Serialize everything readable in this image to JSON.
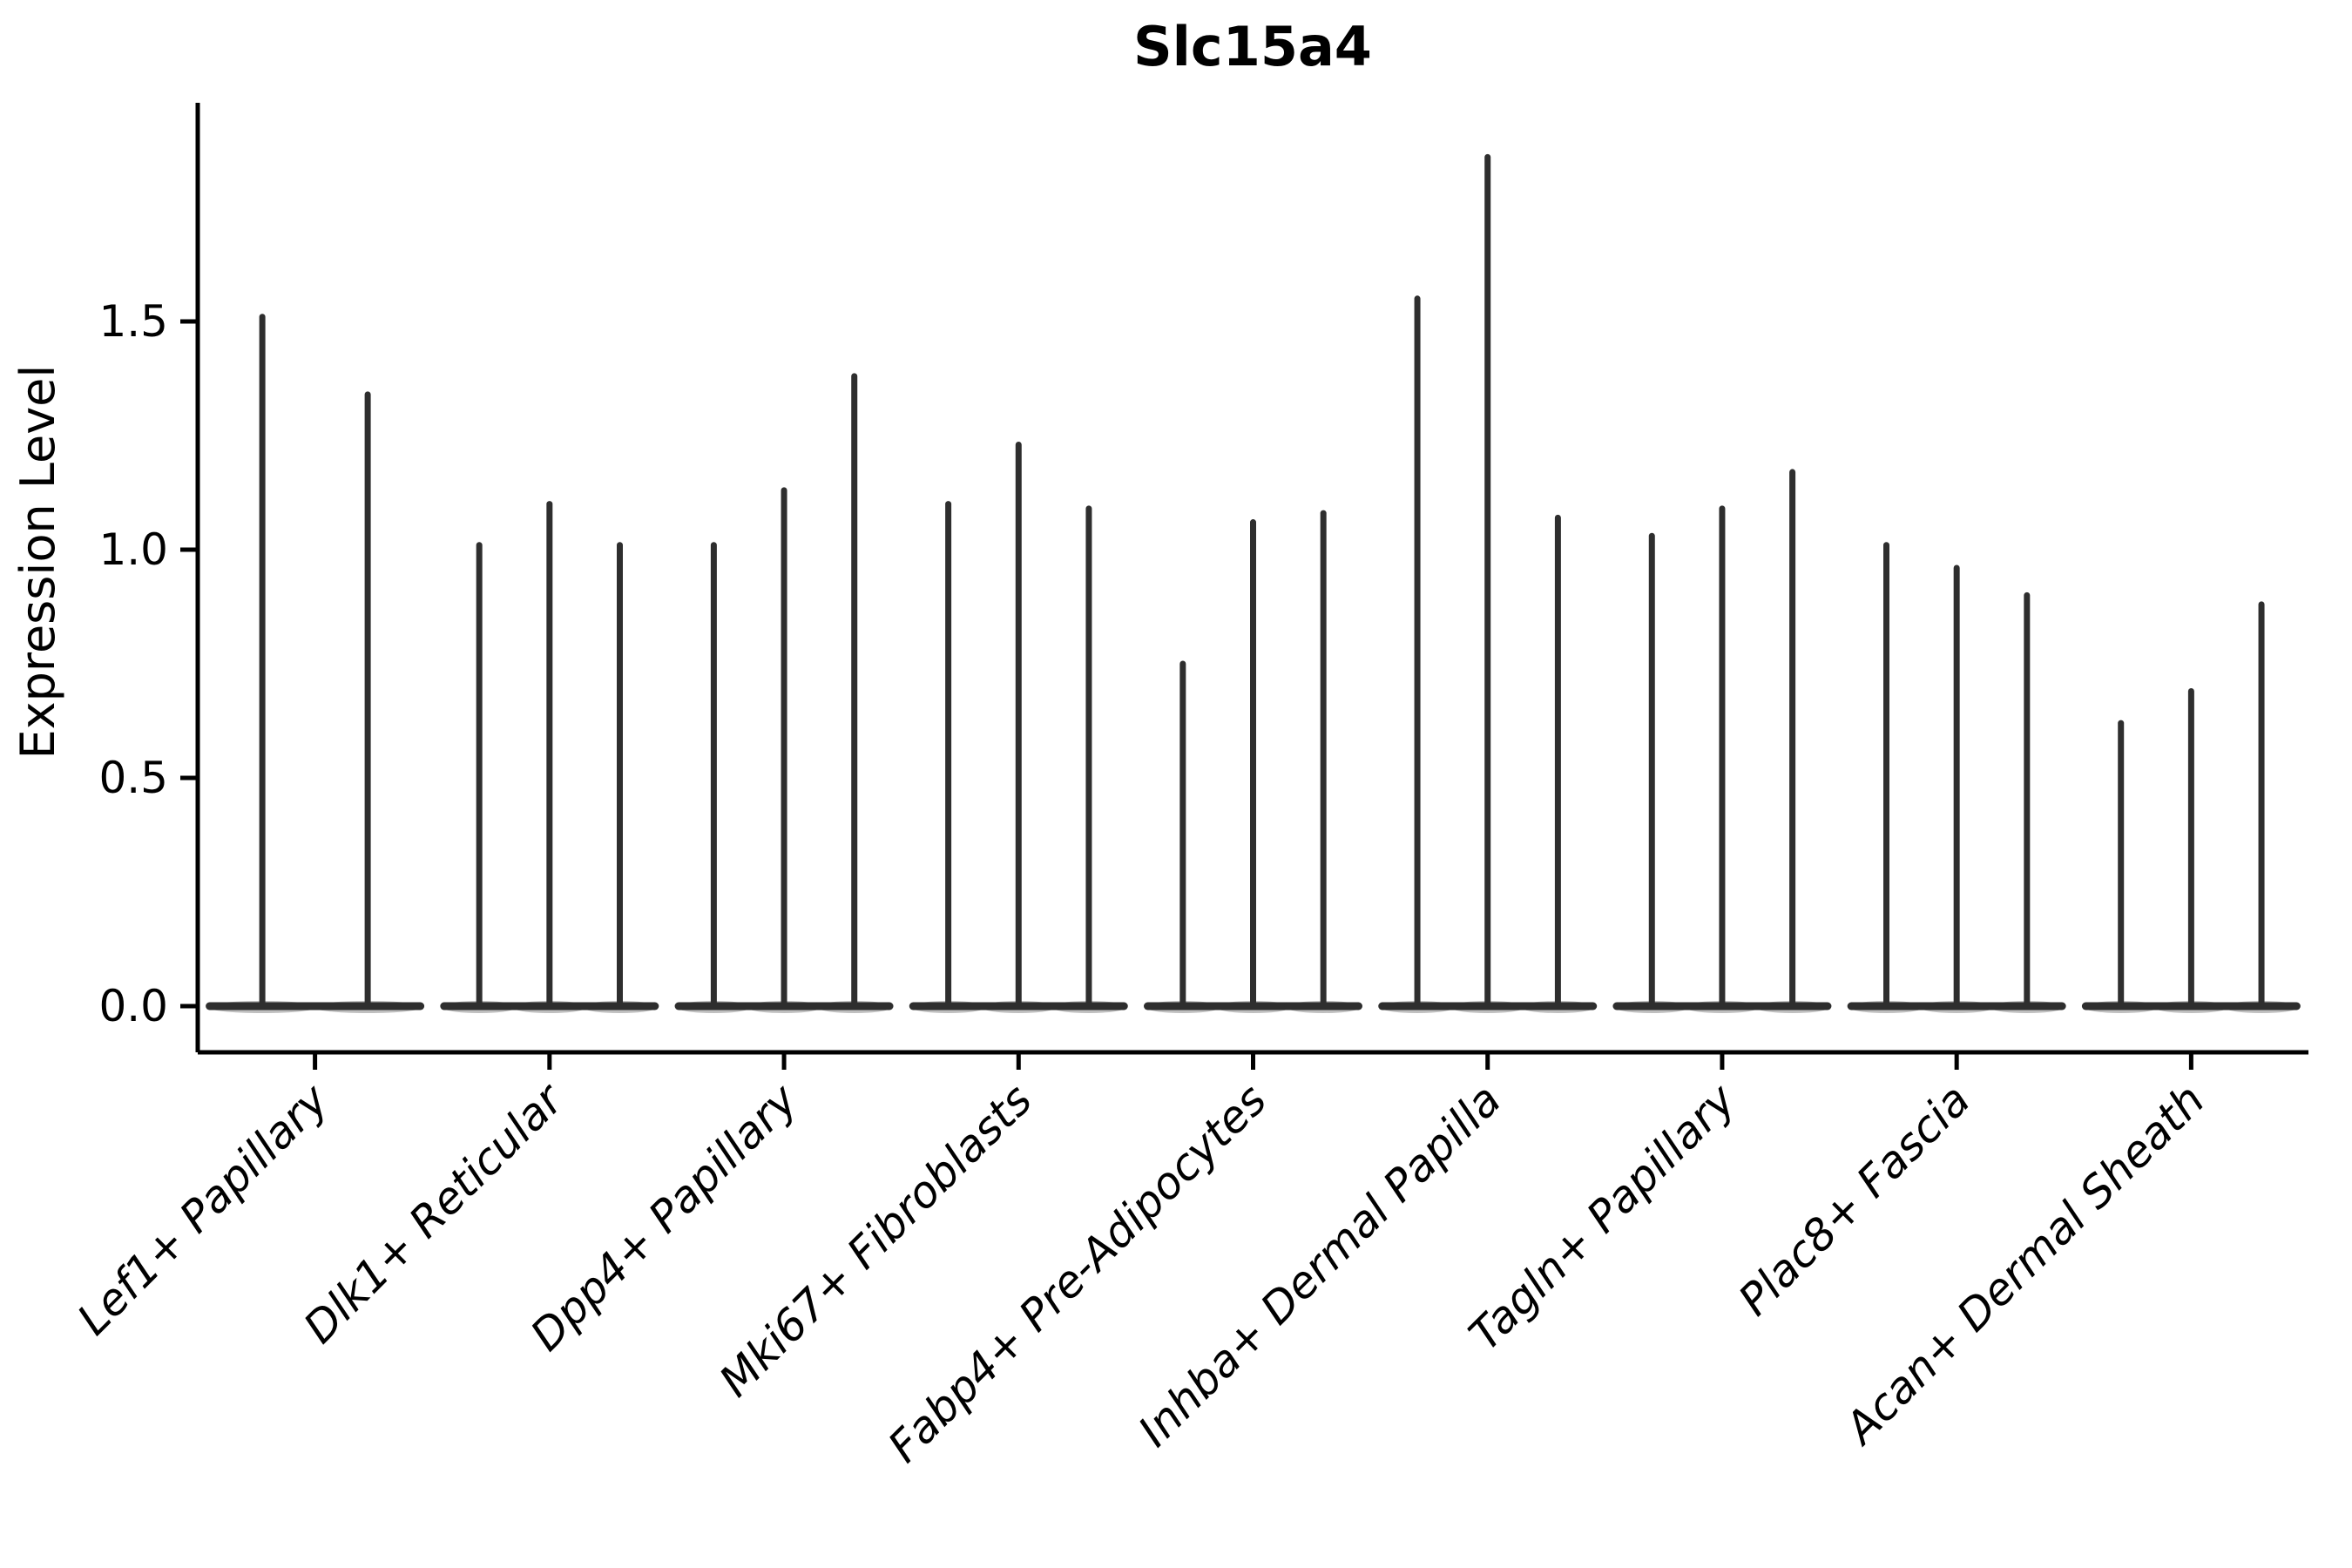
{
  "chart_data": {
    "type": "violin",
    "title": "Slc15a4",
    "ylabel": "Expression Level",
    "xlabel": "",
    "ylim": [
      0,
      1.98
    ],
    "yticks": [
      "0.0",
      "0.5",
      "1.0",
      "1.5"
    ],
    "ytick_values": [
      0.0,
      0.5,
      1.0,
      1.5
    ],
    "grid": false,
    "legend": "none",
    "x_label_rotation_deg": 45,
    "categories": [
      "Lef1+ Papillary",
      "Dlk1+ Reticular",
      "Dpp4+ Papillary",
      "Mki67+ Fibroblasts",
      "Fabp4+ Pre-Adipocytes",
      "Inhba+ Dermal Papilla",
      "Tagln+ Papillary",
      "Plac8+ Fascia",
      "Acan+ Dermal Sheath"
    ],
    "series": [
      {
        "category": "Lef1+ Papillary",
        "violin_peaks": [
          1.51,
          1.34
        ]
      },
      {
        "category": "Dlk1+ Reticular",
        "violin_peaks": [
          1.01,
          1.1,
          1.01
        ]
      },
      {
        "category": "Dpp4+ Papillary",
        "violin_peaks": [
          1.01,
          1.13,
          1.38
        ]
      },
      {
        "category": "Mki67+ Fibroblasts",
        "violin_peaks": [
          1.1,
          1.23,
          1.09
        ]
      },
      {
        "category": "Fabp4+ Pre-Adipocytes",
        "violin_peaks": [
          0.75,
          1.06,
          1.08
        ]
      },
      {
        "category": "Inhba+ Dermal Papilla",
        "violin_peaks": [
          1.55,
          1.86,
          1.07
        ]
      },
      {
        "category": "Tagln+ Papillary",
        "violin_peaks": [
          1.03,
          1.09,
          1.17
        ]
      },
      {
        "category": "Plac8+ Fascia",
        "violin_peaks": [
          1.01,
          0.96,
          0.9
        ]
      },
      {
        "category": "Acan+ Dermal Sheath",
        "violin_peaks": [
          0.62,
          0.69,
          0.88
        ]
      }
    ],
    "violin_shape_note": "each violin is a near-zero-width spike with a wide flat base at expression 0"
  },
  "style": {
    "violin_stroke": "#2e2e2e",
    "violin_base_shadow": "#8a8a8a",
    "axis_color": "#000000",
    "background": "#ffffff"
  }
}
